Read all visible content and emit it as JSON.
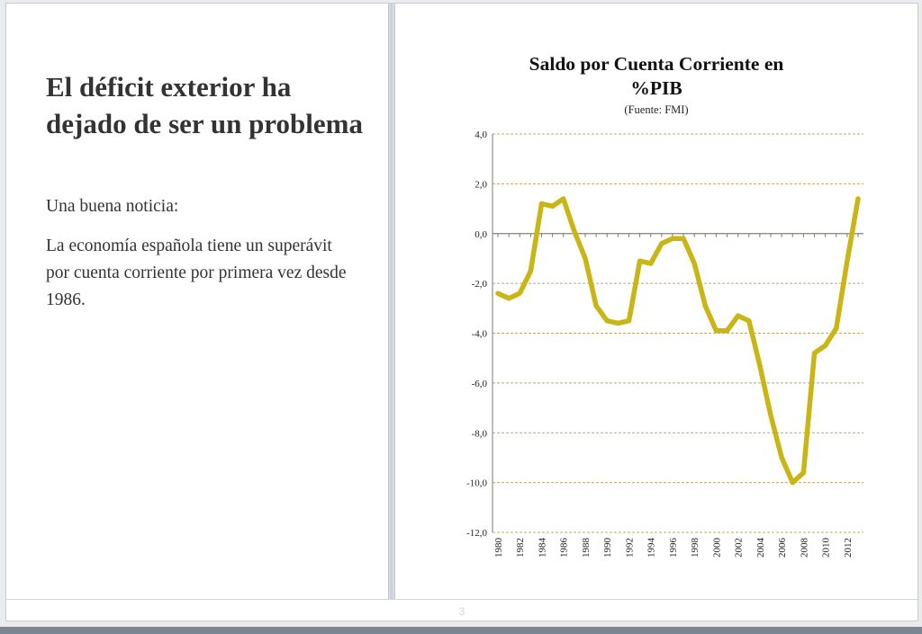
{
  "slide": {
    "title": "El déficit exterior ha dejado de ser un problema",
    "subtitle": "Una buena noticia:",
    "body": "La economía española tiene un superávit por cuenta corriente por primera vez desde 1986.",
    "page_number": "3"
  },
  "chart_data": {
    "type": "line",
    "title_line1": "Saldo por Cuenta Corriente en",
    "title_line2": "%PIB",
    "note": "(Fuente: FMI)",
    "xlabel": "",
    "ylabel": "",
    "ylim": [
      -12,
      4
    ],
    "yticks": [
      "4,0",
      "2,0",
      "0,0",
      "-2,0",
      "-4,0",
      "-6,0",
      "-8,0",
      "-10,0",
      "-12,0"
    ],
    "xticks": [
      "1980",
      "1982",
      "1984",
      "1986",
      "1988",
      "1990",
      "1992",
      "1994",
      "1996",
      "1998",
      "2000",
      "2002",
      "2004",
      "2006",
      "2008",
      "2010",
      "2012"
    ],
    "grid": "horizontal",
    "line_color": "#c9b514",
    "grid_color": "#c8a46a",
    "x": [
      1980,
      1981,
      1982,
      1983,
      1984,
      1985,
      1986,
      1987,
      1988,
      1989,
      1990,
      1991,
      1992,
      1993,
      1994,
      1995,
      1996,
      1997,
      1998,
      1999,
      2000,
      2001,
      2002,
      2003,
      2004,
      2005,
      2006,
      2007,
      2008,
      2009,
      2010,
      2011,
      2012,
      2013
    ],
    "series": [
      {
        "values": [
          -2.4,
          -2.6,
          -2.4,
          -1.5,
          1.2,
          1.1,
          1.4,
          0.1,
          -1.0,
          -2.9,
          -3.5,
          -3.6,
          -3.5,
          -1.1,
          -1.2,
          -0.4,
          -0.2,
          -0.2,
          -1.2,
          -2.9,
          -3.9,
          -3.9,
          -3.3,
          -3.5,
          -5.3,
          -7.3,
          -9.0,
          -10.0,
          -9.6,
          -4.8,
          -4.5,
          -3.8,
          -1.1,
          1.4
        ]
      }
    ]
  }
}
